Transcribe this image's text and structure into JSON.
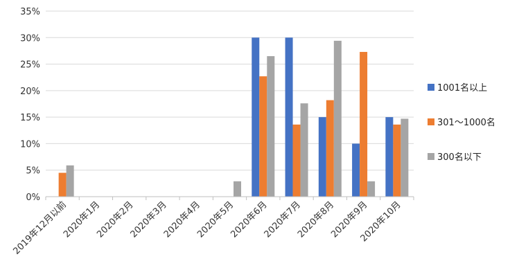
{
  "chart_data": {
    "type": "bar",
    "categories": [
      "2019年12月以前",
      "2020年1月",
      "2020年2月",
      "2020年3月",
      "2020年4月",
      "2020年5月",
      "2020年6月",
      "2020年7月",
      "2020年8月",
      "2020年9月",
      "2020年10月"
    ],
    "series": [
      {
        "name": "1001名以上",
        "color": "#4472C4",
        "values": [
          0,
          0,
          0,
          0,
          0,
          0,
          30,
          30,
          15,
          10,
          15
        ]
      },
      {
        "name": "301～1000名",
        "color": "#ED7D31",
        "values": [
          4.5,
          0,
          0,
          0,
          0,
          0,
          22.7,
          13.6,
          18.2,
          27.3,
          13.6
        ]
      },
      {
        "name": "300名以下",
        "color": "#A5A5A5",
        "values": [
          5.9,
          0,
          0,
          0,
          0,
          2.9,
          26.5,
          17.6,
          29.4,
          2.9,
          14.7
        ]
      }
    ],
    "yticks": [
      "0%",
      "5%",
      "10%",
      "15%",
      "20%",
      "25%",
      "30%",
      "35%"
    ],
    "ylim": [
      0,
      35
    ],
    "grid": true,
    "legend_position": "right",
    "title": "",
    "xlabel": "",
    "ylabel": ""
  }
}
